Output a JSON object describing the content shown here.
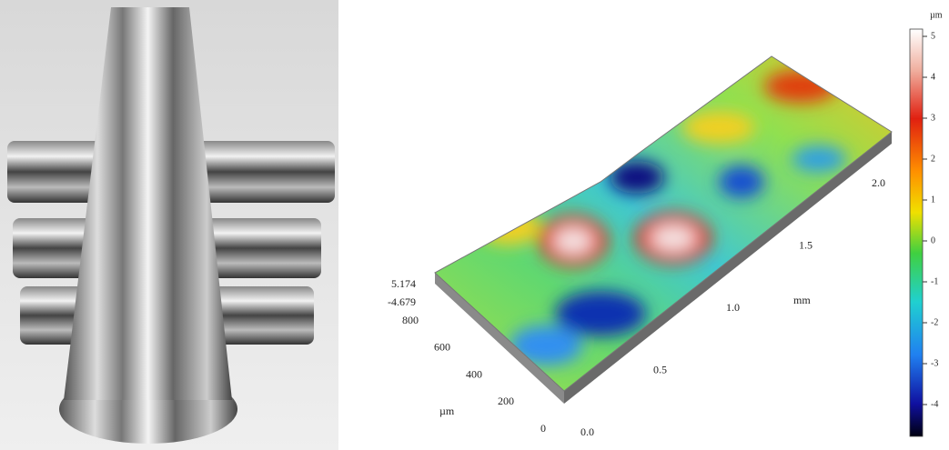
{
  "colorbar": {
    "unit": "µm",
    "ticks": [
      "5",
      "4",
      "3",
      "2",
      "1",
      "0",
      "-1",
      "-2",
      "-3",
      "-4"
    ]
  },
  "z_range": [
    "5.174",
    "-4.679"
  ],
  "x_axis": {
    "label": "mm",
    "ticks": [
      "0.0",
      "0.5",
      "1.0",
      "1.5",
      "2.0"
    ]
  },
  "y_axis": {
    "label": "µm",
    "ticks": [
      "0",
      "200",
      "400",
      "600",
      "800"
    ]
  }
}
